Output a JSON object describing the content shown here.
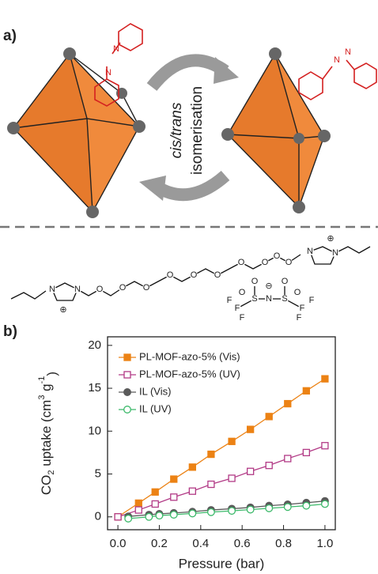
{
  "panels": {
    "a": "a)",
    "b": "b)"
  },
  "diagram": {
    "isomerisation": [
      "cis/trans",
      "isomerisation"
    ],
    "azo_labels": [
      "N",
      "N",
      "N",
      "N"
    ]
  },
  "molecule": {
    "atoms": [
      "N",
      "N",
      "⊕",
      "O",
      "O",
      "O",
      "O",
      "O",
      "O",
      "O",
      "O",
      "O",
      "O",
      "N",
      "N",
      "⊕",
      "N",
      "⊖",
      "S",
      "S",
      "O",
      "O",
      "O",
      "O",
      "F",
      "F",
      "F",
      "F",
      "F",
      "F"
    ]
  },
  "chart_data": {
    "type": "scatter-line",
    "x_label": "Pressure (bar)",
    "y_label": [
      "CO",
      "2",
      " uptake (cm",
      "3",
      " g",
      "-1",
      ")"
    ],
    "xlim": [
      -0.05,
      1.05
    ],
    "ylim": [
      -1.5,
      21
    ],
    "xticks": [
      {
        "value": 0,
        "label": "0.0"
      },
      0.2,
      0.4,
      0.6,
      0.8,
      {
        "value": 1,
        "label": "1.0"
      }
    ],
    "yticks": [
      0,
      5,
      10,
      15,
      20
    ],
    "legend": "upper left",
    "series": [
      {
        "name": "PL-MOF-azo-5% (Vis)",
        "color": "#ec8214",
        "marker": "square",
        "filled": true,
        "x": [
          0.0,
          0.1,
          0.18,
          0.27,
          0.36,
          0.45,
          0.55,
          0.64,
          0.73,
          0.82,
          0.91,
          1.0
        ],
        "values": [
          0,
          1.6,
          2.9,
          4.4,
          5.8,
          7.3,
          8.8,
          10.2,
          11.7,
          13.2,
          14.7,
          16.1
        ]
      },
      {
        "name": "PL-MOF-azo-5% (UV)",
        "color": "#b23a86",
        "marker": "square",
        "filled": false,
        "x": [
          0.0,
          0.1,
          0.18,
          0.27,
          0.36,
          0.45,
          0.55,
          0.64,
          0.73,
          0.82,
          0.91,
          1.0
        ],
        "values": [
          0,
          0.8,
          1.5,
          2.3,
          3.0,
          3.8,
          4.5,
          5.3,
          6.0,
          6.8,
          7.5,
          8.3
        ]
      },
      {
        "name": "IL (Vis)",
        "color": "#5a5a5a",
        "marker": "circle",
        "filled": true,
        "x": [
          0.05,
          0.15,
          0.2,
          0.27,
          0.36,
          0.45,
          0.55,
          0.64,
          0.73,
          0.82,
          0.91,
          1.0
        ],
        "values": [
          0.05,
          0.25,
          0.35,
          0.45,
          0.6,
          0.8,
          0.95,
          1.1,
          1.3,
          1.45,
          1.65,
          1.85
        ]
      },
      {
        "name": "IL (UV)",
        "color": "#3cb96a",
        "marker": "circle",
        "filled": false,
        "x": [
          0.05,
          0.15,
          0.2,
          0.27,
          0.36,
          0.45,
          0.55,
          0.64,
          0.73,
          0.82,
          0.91,
          1.0
        ],
        "values": [
          -0.2,
          0.0,
          0.15,
          0.25,
          0.4,
          0.55,
          0.7,
          0.85,
          1.0,
          1.15,
          1.3,
          1.5
        ]
      }
    ]
  }
}
